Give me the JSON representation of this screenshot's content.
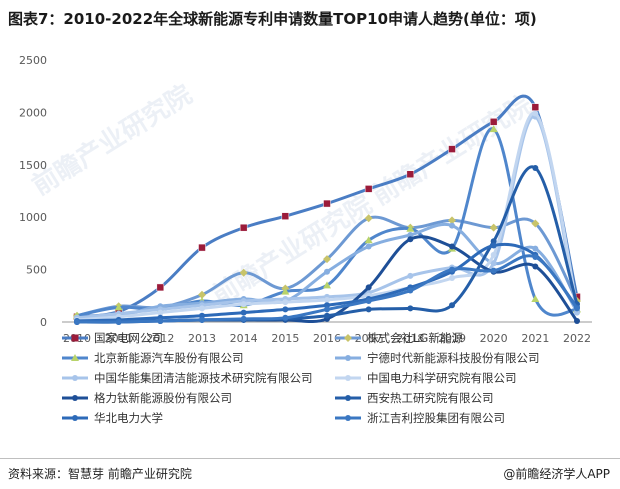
{
  "title": "图表7：2010-2022年全球新能源专利申请数量TOP10申请人趋势(单位：项)",
  "source": "资料来源：智慧芽 前瞻产业研究院",
  "brand": "@前瞻经济学人APP",
  "brand_icon": "qianzhan-logo-icon",
  "watermark": "前瞻产业研究院",
  "chart_data": {
    "type": "line",
    "title": "图表7：2010-2022年全球新能源专利申请数量TOP10申请人趋势(单位：项)",
    "xlabel": "",
    "ylabel": "",
    "x": [
      "2010",
      "2011",
      "2012",
      "2013",
      "2014",
      "2015",
      "2016",
      "2017",
      "2018",
      "2019",
      "2020",
      "2021",
      "2022"
    ],
    "ylim": [
      0,
      2500
    ],
    "yticks": [
      "0",
      "500",
      "1000",
      "1500",
      "2000",
      "2500"
    ],
    "grid": false,
    "smooth": true,
    "legend_position": "bottom",
    "series": [
      {
        "name": "国家电网公司",
        "color": "#4a7dc4",
        "marker": "square",
        "marker_color": "#9b1b3a",
        "values": [
          50,
          100,
          330,
          710,
          900,
          1010,
          1130,
          1270,
          1410,
          1650,
          1910,
          2050,
          240
        ]
      },
      {
        "name": "株式会社LG新能源",
        "color": "#6d99d3",
        "marker": "diamond",
        "marker_color": "#c8c46a",
        "values": [
          60,
          150,
          140,
          260,
          470,
          320,
          600,
          990,
          900,
          970,
          900,
          940,
          200
        ]
      },
      {
        "name": "北京新能源汽车股份有限公司",
        "color": "#4f86cc",
        "marker": "triangle",
        "marker_color": "#b8d36a",
        "values": [
          60,
          140,
          120,
          200,
          160,
          290,
          350,
          780,
          890,
          700,
          1840,
          220,
          120
        ]
      },
      {
        "name": "宁德时代新能源科技股份有限公司",
        "color": "#86aee0",
        "marker": "none",
        "values": [
          40,
          60,
          150,
          180,
          220,
          200,
          480,
          720,
          830,
          920,
          560,
          700,
          100
        ]
      },
      {
        "name": "中国华能集团清洁能源技术研究院有限公司",
        "color": "#a7c4ea",
        "marker": "none",
        "values": [
          40,
          80,
          120,
          160,
          200,
          220,
          240,
          280,
          440,
          520,
          560,
          1960,
          90
        ]
      },
      {
        "name": "中国电力科学研究院有限公司",
        "color": "#c2d6f0",
        "marker": "none",
        "values": [
          20,
          50,
          90,
          130,
          170,
          190,
          210,
          250,
          330,
          420,
          640,
          1990,
          150
        ]
      },
      {
        "name": "格力钛新能源股份有限公司",
        "color": "#1e4f97",
        "marker": "none",
        "values": [
          0,
          0,
          10,
          20,
          20,
          20,
          30,
          330,
          790,
          720,
          480,
          530,
          10
        ]
      },
      {
        "name": "西安热工研究院有限公司",
        "color": "#245ea8",
        "marker": "none",
        "values": [
          0,
          10,
          10,
          20,
          20,
          30,
          60,
          120,
          130,
          160,
          770,
          1470,
          170
        ]
      },
      {
        "name": "华北电力大学",
        "color": "#2d6ab8",
        "marker": "none",
        "values": [
          10,
          20,
          40,
          60,
          90,
          120,
          160,
          220,
          330,
          480,
          730,
          640,
          140
        ]
      },
      {
        "name": "浙江吉利控股集团有限公司",
        "color": "#3a77c2",
        "marker": "none",
        "values": [
          0,
          0,
          10,
          20,
          30,
          40,
          120,
          200,
          300,
          500,
          490,
          620,
          130
        ]
      }
    ]
  }
}
